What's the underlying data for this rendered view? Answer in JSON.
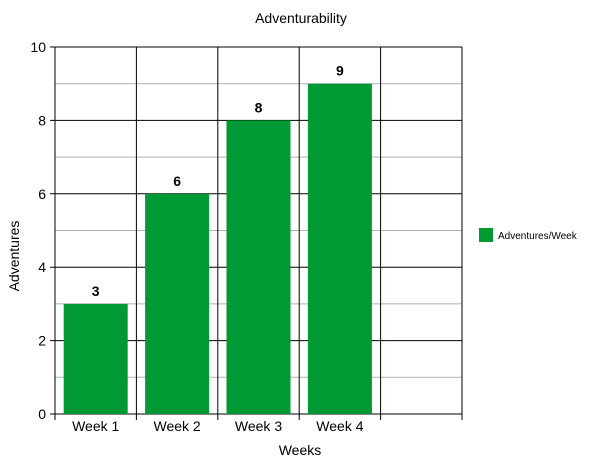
{
  "chart_data": {
    "type": "bar",
    "title": "Adventurability",
    "xlabel": "Weeks",
    "ylabel": "Adventures",
    "categories": [
      "Week 1",
      "Week 2",
      "Week 3",
      "Week 4"
    ],
    "series": [
      {
        "name": "Adventures/Week",
        "values": [
          3,
          6,
          8,
          9
        ],
        "color": "#009933"
      }
    ],
    "ylim": [
      0,
      10
    ],
    "yticks": [
      0,
      2,
      4,
      6,
      8,
      10
    ],
    "show_data_labels": true,
    "grid": true,
    "legend_position": "right"
  }
}
